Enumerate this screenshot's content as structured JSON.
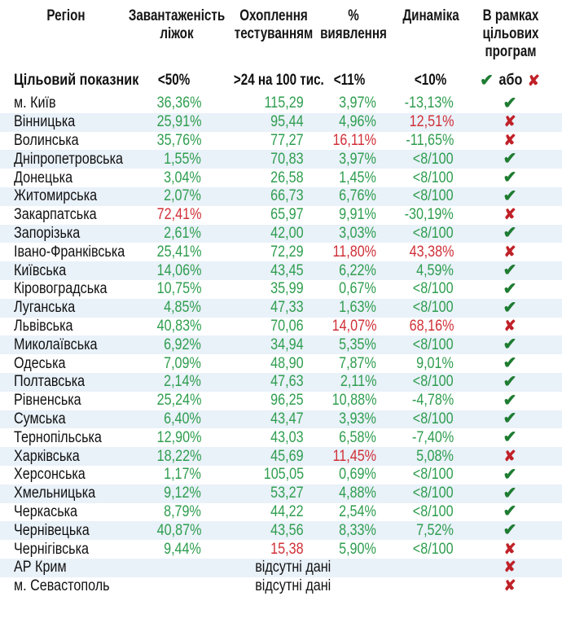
{
  "icons": {
    "check": "✔",
    "cross": "✘"
  },
  "colors": {
    "value_green": "#2f9e4f",
    "value_red": "#d03038",
    "check_green": "#1e7c31",
    "cross_red": "#c02128",
    "row_band": "#e9f1f9"
  },
  "chart_data": {
    "type": "table",
    "columns": [
      {
        "label": "Регіон"
      },
      {
        "label": "Завантаженість\nліжок"
      },
      {
        "label": "Охоплення\nтестуванням"
      },
      {
        "label": "%\nвиявлення"
      },
      {
        "label": "Динаміка"
      },
      {
        "label": "В рамках\nцільових\nпрограм"
      }
    ],
    "target_row": {
      "region": "Цільовий показник",
      "beds": "<50%",
      "testing": ">24 на 100 тис.",
      "detection": "<11%",
      "dynamics": "<10%",
      "or_label": "або"
    },
    "rows": [
      {
        "region": "м. Київ",
        "beds": {
          "v": "36,36%",
          "c": "green"
        },
        "testing": {
          "v": "115,29",
          "c": "green"
        },
        "detection": {
          "v": "3,97%",
          "c": "green"
        },
        "dynamics": {
          "v": "-13,13%",
          "c": "green"
        },
        "result": "pass"
      },
      {
        "region": "Вінницька",
        "beds": {
          "v": "25,91%",
          "c": "green"
        },
        "testing": {
          "v": "95,44",
          "c": "green"
        },
        "detection": {
          "v": "4,96%",
          "c": "green"
        },
        "dynamics": {
          "v": "12,51%",
          "c": "red"
        },
        "result": "fail"
      },
      {
        "region": "Волинська",
        "beds": {
          "v": "35,76%",
          "c": "green"
        },
        "testing": {
          "v": "77,27",
          "c": "green"
        },
        "detection": {
          "v": "16,11%",
          "c": "red"
        },
        "dynamics": {
          "v": "-11,65%",
          "c": "green"
        },
        "result": "fail"
      },
      {
        "region": "Дніпропетровська",
        "beds": {
          "v": "1,55%",
          "c": "green"
        },
        "testing": {
          "v": "70,83",
          "c": "green"
        },
        "detection": {
          "v": "3,97%",
          "c": "green"
        },
        "dynamics": {
          "v": "<8/100",
          "c": "green"
        },
        "result": "pass"
      },
      {
        "region": "Донецька",
        "beds": {
          "v": "3,04%",
          "c": "green"
        },
        "testing": {
          "v": "26,58",
          "c": "green"
        },
        "detection": {
          "v": "1,45%",
          "c": "green"
        },
        "dynamics": {
          "v": "<8/100",
          "c": "green"
        },
        "result": "pass"
      },
      {
        "region": "Житомирська",
        "beds": {
          "v": "2,07%",
          "c": "green"
        },
        "testing": {
          "v": "66,73",
          "c": "green"
        },
        "detection": {
          "v": "6,76%",
          "c": "green"
        },
        "dynamics": {
          "v": "<8/100",
          "c": "green"
        },
        "result": "pass"
      },
      {
        "region": "Закарпатська",
        "beds": {
          "v": "72,41%",
          "c": "red"
        },
        "testing": {
          "v": "65,97",
          "c": "green"
        },
        "detection": {
          "v": "9,91%",
          "c": "green"
        },
        "dynamics": {
          "v": "-30,19%",
          "c": "green"
        },
        "result": "fail"
      },
      {
        "region": "Запорізька",
        "beds": {
          "v": "2,61%",
          "c": "green"
        },
        "testing": {
          "v": "42,00",
          "c": "green"
        },
        "detection": {
          "v": "3,03%",
          "c": "green"
        },
        "dynamics": {
          "v": "<8/100",
          "c": "green"
        },
        "result": "pass"
      },
      {
        "region": "Івано-Франківська",
        "beds": {
          "v": "25,41%",
          "c": "green"
        },
        "testing": {
          "v": "72,29",
          "c": "green"
        },
        "detection": {
          "v": "11,80%",
          "c": "red"
        },
        "dynamics": {
          "v": "43,38%",
          "c": "red"
        },
        "result": "fail"
      },
      {
        "region": "Київська",
        "beds": {
          "v": "14,06%",
          "c": "green"
        },
        "testing": {
          "v": "43,45",
          "c": "green"
        },
        "detection": {
          "v": "6,22%",
          "c": "green"
        },
        "dynamics": {
          "v": "4,59%",
          "c": "green"
        },
        "result": "pass"
      },
      {
        "region": "Кіровоградська",
        "beds": {
          "v": "10,75%",
          "c": "green"
        },
        "testing": {
          "v": "35,99",
          "c": "green"
        },
        "detection": {
          "v": "0,67%",
          "c": "green"
        },
        "dynamics": {
          "v": "<8/100",
          "c": "green"
        },
        "result": "pass"
      },
      {
        "region": "Луганська",
        "beds": {
          "v": "4,85%",
          "c": "green"
        },
        "testing": {
          "v": "47,33",
          "c": "green"
        },
        "detection": {
          "v": "1,63%",
          "c": "green"
        },
        "dynamics": {
          "v": "<8/100",
          "c": "green"
        },
        "result": "pass"
      },
      {
        "region": "Львівська",
        "beds": {
          "v": "40,83%",
          "c": "green"
        },
        "testing": {
          "v": "70,06",
          "c": "green"
        },
        "detection": {
          "v": "14,07%",
          "c": "red"
        },
        "dynamics": {
          "v": "68,16%",
          "c": "red"
        },
        "result": "fail"
      },
      {
        "region": "Миколаївська",
        "beds": {
          "v": "6,92%",
          "c": "green"
        },
        "testing": {
          "v": "34,94",
          "c": "green"
        },
        "detection": {
          "v": "5,35%",
          "c": "green"
        },
        "dynamics": {
          "v": "<8/100",
          "c": "green"
        },
        "result": "pass"
      },
      {
        "region": "Одеська",
        "beds": {
          "v": "7,09%",
          "c": "green"
        },
        "testing": {
          "v": "48,90",
          "c": "green"
        },
        "detection": {
          "v": "7,87%",
          "c": "green"
        },
        "dynamics": {
          "v": "9,01%",
          "c": "green"
        },
        "result": "pass"
      },
      {
        "region": "Полтавська",
        "beds": {
          "v": "2,14%",
          "c": "green"
        },
        "testing": {
          "v": "47,63",
          "c": "green"
        },
        "detection": {
          "v": "2,11%",
          "c": "green"
        },
        "dynamics": {
          "v": "<8/100",
          "c": "green"
        },
        "result": "pass"
      },
      {
        "region": "Рівненська",
        "beds": {
          "v": "25,24%",
          "c": "green"
        },
        "testing": {
          "v": "96,25",
          "c": "green"
        },
        "detection": {
          "v": "10,88%",
          "c": "green"
        },
        "dynamics": {
          "v": "-4,78%",
          "c": "green"
        },
        "result": "pass"
      },
      {
        "region": "Сумська",
        "beds": {
          "v": "6,40%",
          "c": "green"
        },
        "testing": {
          "v": "43,47",
          "c": "green"
        },
        "detection": {
          "v": "3,93%",
          "c": "green"
        },
        "dynamics": {
          "v": "<8/100",
          "c": "green"
        },
        "result": "pass"
      },
      {
        "region": "Тернопільська",
        "beds": {
          "v": "12,90%",
          "c": "green"
        },
        "testing": {
          "v": "43,03",
          "c": "green"
        },
        "detection": {
          "v": "6,58%",
          "c": "green"
        },
        "dynamics": {
          "v": "-7,40%",
          "c": "green"
        },
        "result": "pass"
      },
      {
        "region": "Харківська",
        "beds": {
          "v": "18,22%",
          "c": "green"
        },
        "testing": {
          "v": "45,69",
          "c": "green"
        },
        "detection": {
          "v": "11,45%",
          "c": "red"
        },
        "dynamics": {
          "v": "5,08%",
          "c": "green"
        },
        "result": "fail"
      },
      {
        "region": "Херсонська",
        "beds": {
          "v": "1,17%",
          "c": "green"
        },
        "testing": {
          "v": "105,05",
          "c": "green"
        },
        "detection": {
          "v": "0,69%",
          "c": "green"
        },
        "dynamics": {
          "v": "<8/100",
          "c": "green"
        },
        "result": "pass"
      },
      {
        "region": "Хмельницька",
        "beds": {
          "v": "9,12%",
          "c": "green"
        },
        "testing": {
          "v": "53,27",
          "c": "green"
        },
        "detection": {
          "v": "4,88%",
          "c": "green"
        },
        "dynamics": {
          "v": "<8/100",
          "c": "green"
        },
        "result": "pass"
      },
      {
        "region": "Черкаська",
        "beds": {
          "v": "8,79%",
          "c": "green"
        },
        "testing": {
          "v": "44,22",
          "c": "green"
        },
        "detection": {
          "v": "2,54%",
          "c": "green"
        },
        "dynamics": {
          "v": "<8/100",
          "c": "green"
        },
        "result": "pass"
      },
      {
        "region": "Чернівецька",
        "beds": {
          "v": "40,87%",
          "c": "green"
        },
        "testing": {
          "v": "43,56",
          "c": "green"
        },
        "detection": {
          "v": "8,33%",
          "c": "green"
        },
        "dynamics": {
          "v": "7,52%",
          "c": "green"
        },
        "result": "pass"
      },
      {
        "region": "Чернігівська",
        "beds": {
          "v": "9,44%",
          "c": "green"
        },
        "testing": {
          "v": "15,38",
          "c": "red"
        },
        "detection": {
          "v": "5,90%",
          "c": "green"
        },
        "dynamics": {
          "v": "<8/100",
          "c": "green"
        },
        "result": "fail"
      },
      {
        "region": "АР Крим",
        "no_data": "відсутні дані",
        "result": "fail"
      },
      {
        "region": "м. Севастополь",
        "no_data": "відсутні дані",
        "result": "fail"
      }
    ]
  }
}
